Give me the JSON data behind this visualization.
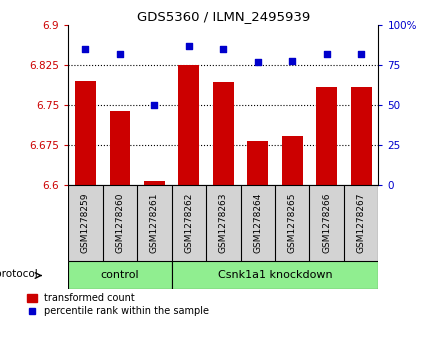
{
  "title": "GDS5360 / ILMN_2495939",
  "categories": [
    "GSM1278259",
    "GSM1278260",
    "GSM1278261",
    "GSM1278262",
    "GSM1278263",
    "GSM1278264",
    "GSM1278265",
    "GSM1278266",
    "GSM1278267"
  ],
  "bar_values": [
    6.795,
    6.74,
    6.607,
    6.825,
    6.793,
    6.683,
    6.693,
    6.785,
    6.785
  ],
  "scatter_values": [
    85,
    82,
    50,
    87,
    85,
    77,
    78,
    82,
    82
  ],
  "bar_color": "#cc0000",
  "scatter_color": "#0000cc",
  "ylim_left": [
    6.6,
    6.9
  ],
  "ylim_right": [
    0,
    100
  ],
  "yticks_left": [
    6.6,
    6.675,
    6.75,
    6.825,
    6.9
  ],
  "yticks_right": [
    0,
    25,
    50,
    75,
    100
  ],
  "ytick_labels_left": [
    "6.6",
    "6.675",
    "6.75",
    "6.825",
    "6.9"
  ],
  "ytick_labels_right": [
    "0",
    "25",
    "50",
    "75",
    "100%"
  ],
  "hlines": [
    6.675,
    6.75,
    6.825
  ],
  "control_count": 3,
  "knockdown_count": 6,
  "control_label": "control",
  "knockdown_label": "Csnk1a1 knockdown",
  "protocol_label": "protocol",
  "legend_bar_label": "transformed count",
  "legend_scatter_label": "percentile rank within the sample",
  "group_box_color": "#d3d3d3",
  "group_fill": "#90ee90",
  "bar_width": 0.6
}
